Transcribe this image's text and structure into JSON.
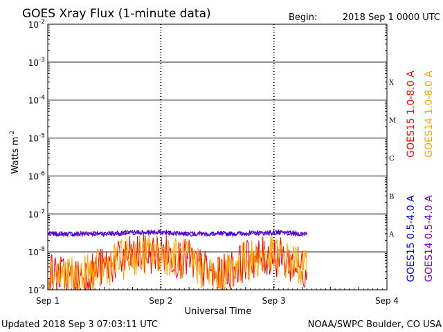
{
  "header": {
    "title": "GOES Xray Flux (1-minute data)",
    "begin_label": "Begin:",
    "begin_value": "2018 Sep 1 0000 UTC"
  },
  "footer": {
    "updated": "Updated 2018 Sep  3 07:03:11 UTC",
    "credit": "NOAA/SWPC Boulder, CO USA"
  },
  "colors": {
    "goes15_long": "#ff0000",
    "goes14_long": "#ffa500",
    "goes15_short": "#0000ff",
    "goes14_short": "#7f00bf"
  },
  "chart_data": {
    "type": "line",
    "title": "GOES Xray Flux (1-minute data)",
    "xlabel": "Universal Time",
    "ylabel": "Watts m",
    "ylabel_exp": "-2",
    "yscale": "log",
    "ylim": [
      1e-09,
      0.01
    ],
    "y_tick_labels": [
      {
        "base": "10",
        "exp": "-2",
        "value": 0.01
      },
      {
        "base": "10",
        "exp": "-3",
        "value": 0.001
      },
      {
        "base": "10",
        "exp": "-4",
        "value": 0.0001
      },
      {
        "base": "10",
        "exp": "-5",
        "value": 1e-05
      },
      {
        "base": "10",
        "exp": "-6",
        "value": 1e-06
      },
      {
        "base": "10",
        "exp": "-7",
        "value": 1e-07
      },
      {
        "base": "10",
        "exp": "-8",
        "value": 1e-08
      },
      {
        "base": "10",
        "exp": "-9",
        "value": 1e-09
      }
    ],
    "x_tick_labels": [
      "Sep 1",
      "Sep 2",
      "Sep 3",
      "Sep 4"
    ],
    "xlim": [
      "2018-09-01T00:00",
      "2018-09-04T00:00"
    ],
    "flare_classes": [
      {
        "label": "X",
        "value": 0.0001
      },
      {
        "label": "M",
        "value": 1e-05
      },
      {
        "label": "C",
        "value": 1e-06
      },
      {
        "label": "B",
        "value": 1e-07
      },
      {
        "label": "A",
        "value": 1e-08
      }
    ],
    "grid": "horizontal at each decade; dotted vertical at each day",
    "legend": "right side, vertical text",
    "series": [
      {
        "name": "GOES15 1.0-8.0 A",
        "channel": "long",
        "color": "#ff0000",
        "x": [
          "2018-09-01T00:00",
          "2018-09-01T06:00",
          "2018-09-01T12:00",
          "2018-09-01T18:00",
          "2018-09-02T00:00",
          "2018-09-02T06:00",
          "2018-09-02T12:00",
          "2018-09-02T18:00",
          "2018-09-03T00:00",
          "2018-09-03T06:00",
          "2018-09-03T07:00"
        ],
        "values": [
          3e-09,
          2e-09,
          4e-09,
          8e-09,
          9e-09,
          6e-09,
          2e-09,
          6e-09,
          8e-09,
          4e-09,
          3e-09
        ]
      },
      {
        "name": "GOES14 1.0-8.0 A",
        "channel": "long",
        "color": "#ffa500",
        "x": [
          "2018-09-01T00:00",
          "2018-09-01T06:00",
          "2018-09-01T12:00",
          "2018-09-01T18:00",
          "2018-09-02T00:00",
          "2018-09-02T06:00",
          "2018-09-02T12:00",
          "2018-09-02T18:00",
          "2018-09-03T00:00",
          "2018-09-03T06:00",
          "2018-09-03T07:00"
        ],
        "values": [
          3e-09,
          2e-09,
          4e-09,
          8e-09,
          9e-09,
          6e-09,
          2e-09,
          6e-09,
          8e-09,
          4e-09,
          3e-09
        ]
      },
      {
        "name": "GOES15 0.5-4.0 A",
        "channel": "short",
        "color": "#0000ff",
        "x": [
          "2018-09-01T00:00",
          "2018-09-01T06:00",
          "2018-09-01T12:00",
          "2018-09-01T18:00",
          "2018-09-02T00:00",
          "2018-09-02T06:00",
          "2018-09-02T12:00",
          "2018-09-02T18:00",
          "2018-09-03T00:00",
          "2018-09-03T06:00",
          "2018-09-03T07:00"
        ],
        "values": [
          3e-08,
          3e-08,
          3e-08,
          3.2e-08,
          3.3e-08,
          3e-08,
          3e-08,
          3.1e-08,
          3.2e-08,
          3e-08,
          3e-08
        ]
      },
      {
        "name": "GOES14 0.5-4.0 A",
        "channel": "short",
        "color": "#7f00bf",
        "x": [
          "2018-09-01T00:00",
          "2018-09-01T06:00",
          "2018-09-01T12:00",
          "2018-09-01T18:00",
          "2018-09-02T00:00",
          "2018-09-02T06:00",
          "2018-09-02T12:00",
          "2018-09-02T18:00",
          "2018-09-03T00:00",
          "2018-09-03T06:00",
          "2018-09-03T07:00"
        ],
        "values": [
          3e-08,
          3e-08,
          3e-08,
          3.2e-08,
          3.3e-08,
          3e-08,
          3e-08,
          3.1e-08,
          3.2e-08,
          3e-08,
          3e-08
        ]
      }
    ]
  }
}
